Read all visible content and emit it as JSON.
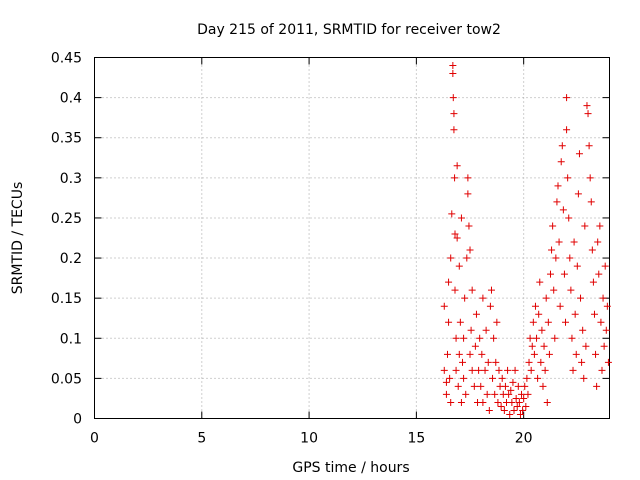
{
  "chart_data": {
    "type": "scatter",
    "title": "Day 215 of 2011, SRMTID for receiver tow2",
    "xlabel": "GPS time / hours",
    "ylabel": "SRMTID / TECUs",
    "xlim": [
      0,
      24
    ],
    "ylim": [
      0,
      0.45
    ],
    "xticks": [
      "0",
      "5",
      "10",
      "15",
      "20"
    ],
    "yticks": [
      "0",
      "0.05",
      "0.1",
      "0.15",
      "0.2",
      "0.25",
      "0.3",
      "0.35",
      "0.4",
      "0.45"
    ],
    "grid": true,
    "marker": "plus",
    "color": "#e00000",
    "series": [
      {
        "name": "SRMTID",
        "points": [
          [
            16.3,
            0.14
          ],
          [
            16.3,
            0.06
          ],
          [
            16.4,
            0.045
          ],
          [
            16.4,
            0.03
          ],
          [
            16.45,
            0.08
          ],
          [
            16.5,
            0.17
          ],
          [
            16.5,
            0.12
          ],
          [
            16.55,
            0.05
          ],
          [
            16.6,
            0.02
          ],
          [
            16.6,
            0.2
          ],
          [
            16.65,
            0.255
          ],
          [
            16.7,
            0.44
          ],
          [
            16.7,
            0.43
          ],
          [
            16.72,
            0.4
          ],
          [
            16.75,
            0.38
          ],
          [
            16.75,
            0.36
          ],
          [
            16.78,
            0.3
          ],
          [
            16.8,
            0.23
          ],
          [
            16.8,
            0.16
          ],
          [
            16.85,
            0.1
          ],
          [
            16.85,
            0.06
          ],
          [
            16.9,
            0.315
          ],
          [
            16.9,
            0.225
          ],
          [
            16.95,
            0.04
          ],
          [
            17.0,
            0.08
          ],
          [
            17.0,
            0.19
          ],
          [
            17.05,
            0.12
          ],
          [
            17.1,
            0.02
          ],
          [
            17.1,
            0.25
          ],
          [
            17.15,
            0.07
          ],
          [
            17.2,
            0.1
          ],
          [
            17.2,
            0.05
          ],
          [
            17.25,
            0.15
          ],
          [
            17.3,
            0.03
          ],
          [
            17.35,
            0.2
          ],
          [
            17.4,
            0.3
          ],
          [
            17.4,
            0.28
          ],
          [
            17.45,
            0.24
          ],
          [
            17.5,
            0.21
          ],
          [
            17.5,
            0.08
          ],
          [
            17.55,
            0.11
          ],
          [
            17.6,
            0.06
          ],
          [
            17.6,
            0.16
          ],
          [
            17.7,
            0.04
          ],
          [
            17.75,
            0.09
          ],
          [
            17.8,
            0.13
          ],
          [
            17.85,
            0.02
          ],
          [
            17.9,
            0.06
          ],
          [
            17.95,
            0.1
          ],
          [
            18.0,
            0.04
          ],
          [
            18.05,
            0.08
          ],
          [
            18.1,
            0.02
          ],
          [
            18.1,
            0.15
          ],
          [
            18.2,
            0.06
          ],
          [
            18.25,
            0.11
          ],
          [
            18.3,
            0.03
          ],
          [
            18.35,
            0.07
          ],
          [
            18.4,
            0.01
          ],
          [
            18.45,
            0.14
          ],
          [
            18.5,
            0.16
          ],
          [
            18.55,
            0.05
          ],
          [
            18.6,
            0.1
          ],
          [
            18.65,
            0.03
          ],
          [
            18.7,
            0.07
          ],
          [
            18.75,
            0.12
          ],
          [
            18.8,
            0.02
          ],
          [
            18.85,
            0.06
          ],
          [
            18.9,
            0.04
          ],
          [
            18.95,
            0.015
          ],
          [
            19.0,
            0.05
          ],
          [
            19.05,
            0.03
          ],
          [
            19.1,
            0.01
          ],
          [
            19.15,
            0.04
          ],
          [
            19.2,
            0.02
          ],
          [
            19.25,
            0.06
          ],
          [
            19.3,
            0.03
          ],
          [
            19.35,
            0.005
          ],
          [
            19.4,
            0.035
          ],
          [
            19.45,
            0.02
          ],
          [
            19.5,
            0.045
          ],
          [
            19.55,
            0.01
          ],
          [
            19.6,
            0.06
          ],
          [
            19.65,
            0.025
          ],
          [
            19.7,
            0.015
          ],
          [
            19.75,
            0.04
          ],
          [
            19.8,
            0.02
          ],
          [
            19.85,
            0.005
          ],
          [
            19.9,
            0.03
          ],
          [
            19.95,
            0.01
          ],
          [
            20.0,
            0.025
          ],
          [
            20.05,
            0.04
          ],
          [
            20.1,
            0.015
          ],
          [
            20.15,
            0.05
          ],
          [
            20.2,
            0.03
          ],
          [
            20.25,
            0.07
          ],
          [
            20.3,
            0.1
          ],
          [
            20.35,
            0.06
          ],
          [
            20.4,
            0.09
          ],
          [
            20.45,
            0.12
          ],
          [
            20.5,
            0.08
          ],
          [
            20.55,
            0.14
          ],
          [
            20.6,
            0.1
          ],
          [
            20.65,
            0.05
          ],
          [
            20.7,
            0.13
          ],
          [
            20.75,
            0.17
          ],
          [
            20.8,
            0.07
          ],
          [
            20.85,
            0.11
          ],
          [
            20.9,
            0.04
          ],
          [
            20.95,
            0.09
          ],
          [
            21.0,
            0.06
          ],
          [
            21.05,
            0.15
          ],
          [
            21.1,
            0.02
          ],
          [
            21.15,
            0.12
          ],
          [
            21.2,
            0.08
          ],
          [
            21.25,
            0.18
          ],
          [
            21.3,
            0.21
          ],
          [
            21.35,
            0.24
          ],
          [
            21.4,
            0.16
          ],
          [
            21.45,
            0.1
          ],
          [
            21.5,
            0.2
          ],
          [
            21.55,
            0.27
          ],
          [
            21.6,
            0.29
          ],
          [
            21.65,
            0.22
          ],
          [
            21.7,
            0.14
          ],
          [
            21.75,
            0.32
          ],
          [
            21.8,
            0.34
          ],
          [
            21.85,
            0.26
          ],
          [
            21.9,
            0.18
          ],
          [
            21.95,
            0.12
          ],
          [
            22.0,
            0.4
          ],
          [
            22.0,
            0.36
          ],
          [
            22.05,
            0.3
          ],
          [
            22.1,
            0.25
          ],
          [
            22.15,
            0.2
          ],
          [
            22.2,
            0.16
          ],
          [
            22.25,
            0.1
          ],
          [
            22.3,
            0.06
          ],
          [
            22.35,
            0.22
          ],
          [
            22.4,
            0.13
          ],
          [
            22.45,
            0.08
          ],
          [
            22.5,
            0.19
          ],
          [
            22.55,
            0.28
          ],
          [
            22.6,
            0.33
          ],
          [
            22.65,
            0.15
          ],
          [
            22.7,
            0.07
          ],
          [
            22.75,
            0.11
          ],
          [
            22.8,
            0.05
          ],
          [
            22.85,
            0.24
          ],
          [
            22.9,
            0.09
          ],
          [
            22.95,
            0.39
          ],
          [
            23.0,
            0.38
          ],
          [
            23.05,
            0.34
          ],
          [
            23.1,
            0.3
          ],
          [
            23.15,
            0.27
          ],
          [
            23.2,
            0.21
          ],
          [
            23.25,
            0.17
          ],
          [
            23.3,
            0.13
          ],
          [
            23.35,
            0.08
          ],
          [
            23.4,
            0.04
          ],
          [
            23.45,
            0.22
          ],
          [
            23.5,
            0.18
          ],
          [
            23.55,
            0.24
          ],
          [
            23.6,
            0.12
          ],
          [
            23.65,
            0.06
          ],
          [
            23.7,
            0.15
          ],
          [
            23.75,
            0.09
          ],
          [
            23.8,
            0.19
          ],
          [
            23.85,
            0.11
          ],
          [
            23.9,
            0.14
          ],
          [
            23.95,
            0.07
          ]
        ]
      }
    ]
  }
}
